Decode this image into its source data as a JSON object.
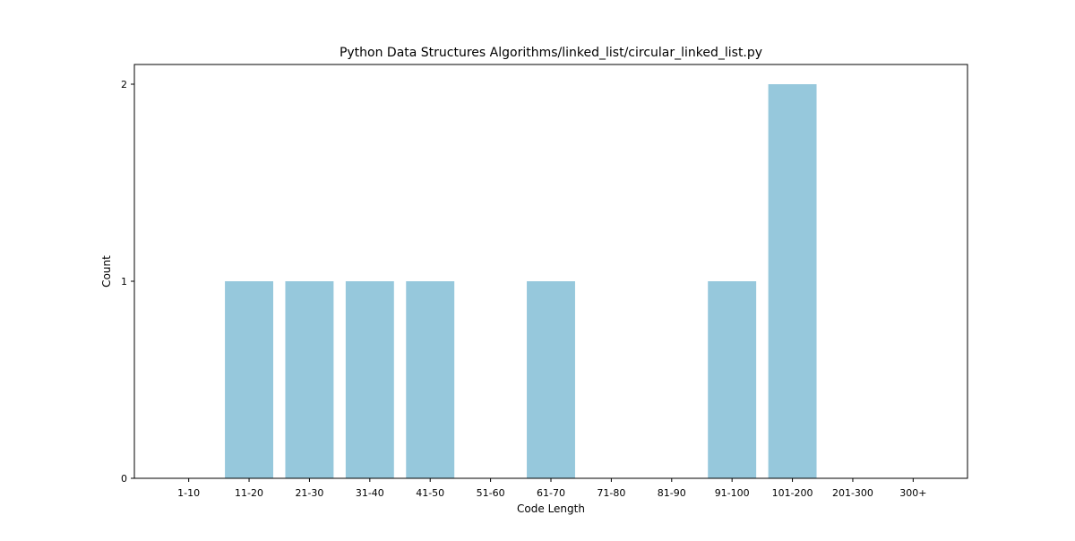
{
  "chart_data": {
    "type": "bar",
    "title": "Python Data Structures Algorithms/linked_list/circular_linked_list.py",
    "xlabel": "Code Length",
    "ylabel": "Count",
    "categories": [
      "1-10",
      "11-20",
      "21-30",
      "31-40",
      "41-50",
      "51-60",
      "61-70",
      "71-80",
      "81-90",
      "91-100",
      "101-200",
      "201-300",
      "300+"
    ],
    "values": [
      0,
      1,
      1,
      1,
      1,
      0,
      1,
      0,
      0,
      1,
      2,
      0,
      0
    ],
    "ylim": [
      0,
      2.1
    ],
    "yticks": [
      0,
      1,
      2
    ],
    "grid": false,
    "legend": "none",
    "bar_color": "#96c8dc"
  }
}
